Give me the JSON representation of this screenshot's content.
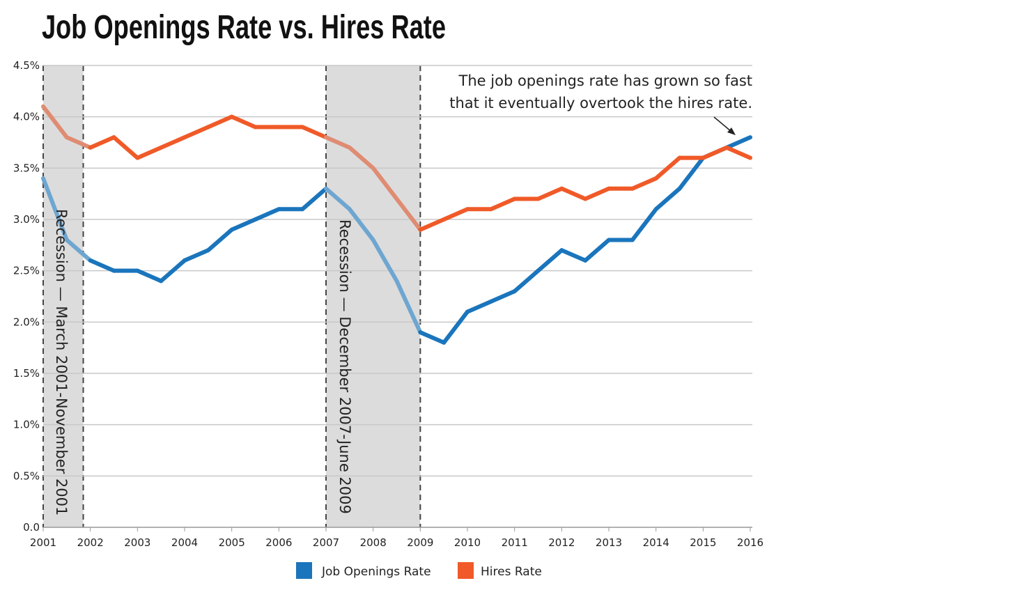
{
  "chart_data": {
    "type": "line",
    "title": "Job Openings Rate vs. Hires Rate",
    "xlabel": "",
    "ylabel": "",
    "xlim": [
      2001,
      2016
    ],
    "ylim": [
      0,
      4.5
    ],
    "grid": true,
    "legend_position": "bottom",
    "x_ticks": [
      "2001",
      "2002",
      "2003",
      "2004",
      "2005",
      "2006",
      "2007",
      "2008",
      "2009",
      "2010",
      "2011",
      "2012",
      "2013",
      "2014",
      "2015",
      "2016"
    ],
    "y_ticks": [
      {
        "value": 0,
        "label": "0.0"
      },
      {
        "value": 0.5,
        "label": "0.5%"
      },
      {
        "value": 1.0,
        "label": "1.0%"
      },
      {
        "value": 1.5,
        "label": "1.5%"
      },
      {
        "value": 2.0,
        "label": "2.0%"
      },
      {
        "value": 2.5,
        "label": "2.5%"
      },
      {
        "value": 3.0,
        "label": "3.0%"
      },
      {
        "value": 3.5,
        "label": "3.5%"
      },
      {
        "value": 4.0,
        "label": "4.0%"
      },
      {
        "value": 4.5,
        "label": "4.5%"
      }
    ],
    "x": [
      2001,
      2001.5,
      2002,
      2002.5,
      2003,
      2003.5,
      2004,
      2004.5,
      2005,
      2005.5,
      2006,
      2006.5,
      2007,
      2007.5,
      2008,
      2008.5,
      2009,
      2009.5,
      2010,
      2010.5,
      2011,
      2011.5,
      2012,
      2012.5,
      2013,
      2013.5,
      2014,
      2014.5,
      2015,
      2015.5,
      2016
    ],
    "series": [
      {
        "name": "Job Openings Rate",
        "color": "#1a75bc",
        "recession_color": "#6ea6d0",
        "values": [
          3.4,
          2.8,
          2.6,
          2.5,
          2.5,
          2.4,
          2.6,
          2.7,
          2.9,
          3.0,
          3.1,
          3.1,
          3.3,
          3.1,
          2.8,
          2.4,
          1.9,
          1.8,
          2.1,
          2.2,
          2.3,
          2.5,
          2.7,
          2.6,
          2.8,
          2.8,
          3.1,
          3.3,
          3.6,
          3.7,
          3.8
        ]
      },
      {
        "name": "Hires Rate",
        "color": "#f05a28",
        "recession_color": "#df8c72",
        "values": [
          4.1,
          3.8,
          3.7,
          3.8,
          3.6,
          3.7,
          3.8,
          3.9,
          4.0,
          3.9,
          3.9,
          3.9,
          3.8,
          3.7,
          3.5,
          3.2,
          2.9,
          3.0,
          3.1,
          3.1,
          3.2,
          3.2,
          3.3,
          3.2,
          3.3,
          3.3,
          3.4,
          3.6,
          3.6,
          3.7,
          3.6
        ]
      }
    ],
    "recessions": [
      {
        "start": 2001,
        "end": 2001.85,
        "label": "Recession — March 2001-November 2001"
      },
      {
        "start": 2007,
        "end": 2009,
        "label": "Recession — December 2007-June 2009"
      }
    ],
    "recession_fill": "#dcdcdd",
    "annotation": {
      "lines": [
        "The job openings rate has grown so fast",
        "that it eventually overtook the hires rate."
      ],
      "points_to": {
        "x": 2015.7,
        "y": 3.72
      }
    }
  }
}
